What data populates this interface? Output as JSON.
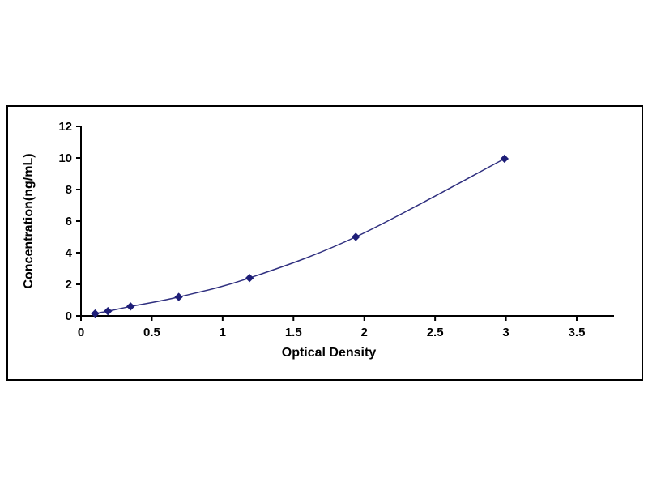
{
  "page": {
    "background_color": "#ffffff",
    "frame_border_color": "#000000"
  },
  "chart_data": {
    "type": "line",
    "title": "",
    "xlabel": "Optical Density",
    "ylabel": "Concentration(ng/mL)",
    "x": [
      0.1,
      0.19,
      0.35,
      0.69,
      1.19,
      1.94,
      2.99
    ],
    "y": [
      0.15,
      0.3,
      0.6,
      1.2,
      2.4,
      5.0,
      9.95
    ],
    "xlim": [
      0,
      3.5
    ],
    "ylim": [
      0,
      12
    ],
    "xticks": [
      0,
      0.5,
      1,
      1.5,
      2,
      2.5,
      3,
      3.5
    ],
    "yticks": [
      0,
      2,
      4,
      6,
      8,
      10,
      12
    ],
    "line_color": "#2f2f7f",
    "marker_color": "#1e1e78",
    "marker": "diamond",
    "axis_color": "#000000",
    "grid": false,
    "legend_position": "none"
  }
}
